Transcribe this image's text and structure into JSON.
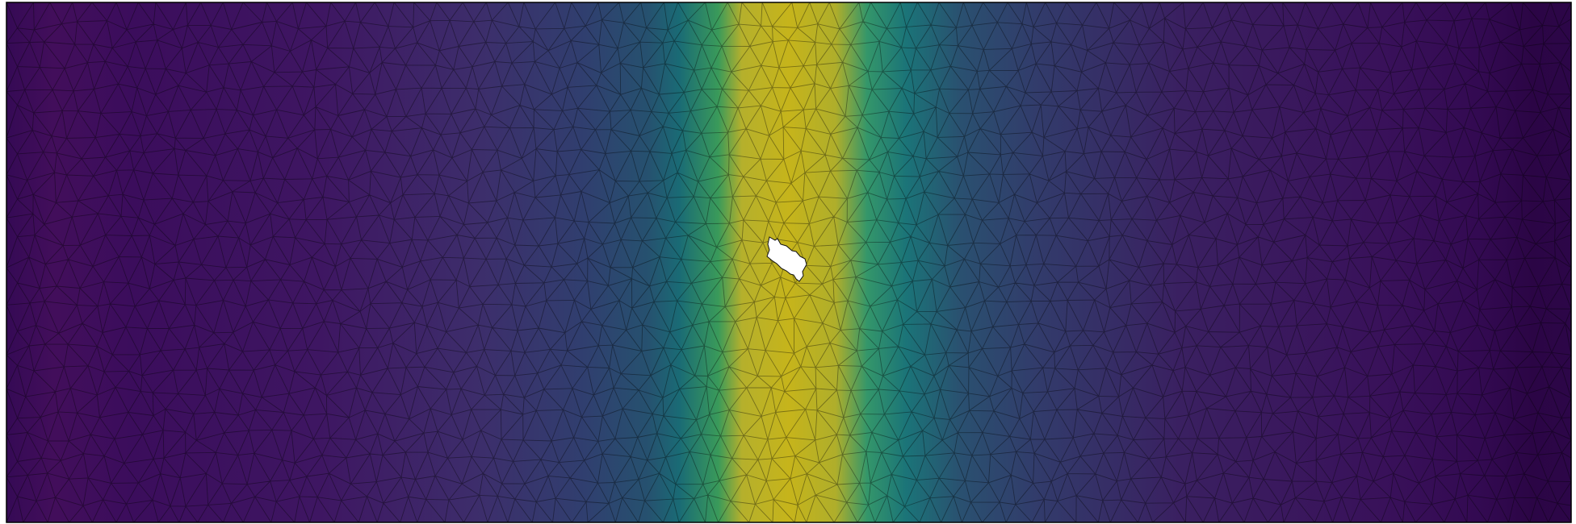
{
  "figure": {
    "kind": "finite-element mesh field plot",
    "colormap": "viridis",
    "colormap_stops": [
      "#440154",
      "#3b528b",
      "#21918c",
      "#5ec962",
      "#c9b516"
    ],
    "background": "#ffffff",
    "mesh_edge_color": "#000000",
    "frame_color": "#000000",
    "hole_fill": "#ffffff",
    "field_profile": {
      "axis": "horizontal",
      "peak_position_fraction": 0.5,
      "low_value": 0.0,
      "high_value": 1.0
    },
    "features": {
      "central_hole": true,
      "triangular_mesh": true
    }
  }
}
